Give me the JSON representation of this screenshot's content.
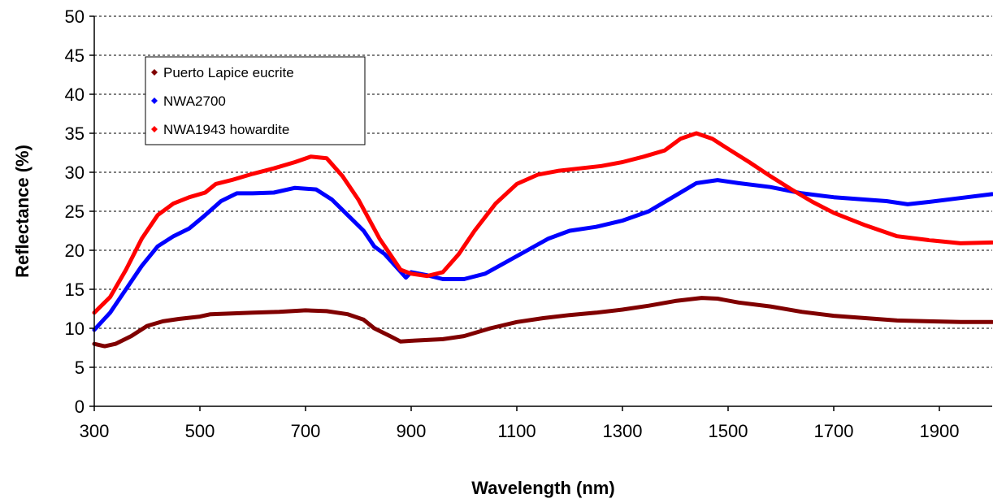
{
  "chart_data": {
    "type": "line",
    "xlabel": "Wavelength (nm)",
    "ylabel": "Reflectance (%)",
    "xlim": [
      300,
      2000
    ],
    "ylim": [
      0,
      50
    ],
    "x_ticks": [
      300,
      500,
      700,
      900,
      1100,
      1300,
      1500,
      1700,
      1900
    ],
    "y_ticks": [
      0,
      5,
      10,
      15,
      20,
      25,
      30,
      35,
      40,
      45,
      50
    ],
    "grid": "horizontal dashed",
    "legend_position": "top-left",
    "series": [
      {
        "name": "Puerto Lapice eucrite",
        "color": "#800000",
        "points": [
          [
            300,
            8.0
          ],
          [
            320,
            7.7
          ],
          [
            340,
            8.0
          ],
          [
            370,
            9.0
          ],
          [
            400,
            10.3
          ],
          [
            430,
            10.9
          ],
          [
            460,
            11.2
          ],
          [
            500,
            11.5
          ],
          [
            520,
            11.8
          ],
          [
            560,
            11.9
          ],
          [
            600,
            12.0
          ],
          [
            650,
            12.1
          ],
          [
            700,
            12.3
          ],
          [
            740,
            12.2
          ],
          [
            780,
            11.8
          ],
          [
            810,
            11.1
          ],
          [
            830,
            10.0
          ],
          [
            860,
            9.0
          ],
          [
            880,
            8.3
          ],
          [
            900,
            8.4
          ],
          [
            930,
            8.5
          ],
          [
            960,
            8.6
          ],
          [
            1000,
            9.0
          ],
          [
            1050,
            10.0
          ],
          [
            1100,
            10.8
          ],
          [
            1150,
            11.3
          ],
          [
            1200,
            11.7
          ],
          [
            1250,
            12.0
          ],
          [
            1300,
            12.4
          ],
          [
            1350,
            12.9
          ],
          [
            1400,
            13.5
          ],
          [
            1450,
            13.9
          ],
          [
            1480,
            13.8
          ],
          [
            1520,
            13.3
          ],
          [
            1580,
            12.8
          ],
          [
            1640,
            12.1
          ],
          [
            1700,
            11.6
          ],
          [
            1760,
            11.3
          ],
          [
            1820,
            11.0
          ],
          [
            1880,
            10.9
          ],
          [
            1940,
            10.8
          ],
          [
            2000,
            10.8
          ]
        ]
      },
      {
        "name": "NWA2700",
        "color": "#0000ff",
        "points": [
          [
            300,
            9.8
          ],
          [
            330,
            12.0
          ],
          [
            360,
            15.0
          ],
          [
            390,
            18.0
          ],
          [
            420,
            20.5
          ],
          [
            450,
            21.8
          ],
          [
            480,
            22.8
          ],
          [
            510,
            24.5
          ],
          [
            540,
            26.3
          ],
          [
            570,
            27.3
          ],
          [
            600,
            27.3
          ],
          [
            640,
            27.4
          ],
          [
            680,
            28.0
          ],
          [
            720,
            27.8
          ],
          [
            750,
            26.5
          ],
          [
            780,
            24.5
          ],
          [
            810,
            22.5
          ],
          [
            830,
            20.5
          ],
          [
            850,
            19.5
          ],
          [
            870,
            18.0
          ],
          [
            890,
            16.5
          ],
          [
            900,
            17.2
          ],
          [
            930,
            16.8
          ],
          [
            960,
            16.3
          ],
          [
            1000,
            16.3
          ],
          [
            1040,
            17.0
          ],
          [
            1080,
            18.5
          ],
          [
            1120,
            20.0
          ],
          [
            1160,
            21.5
          ],
          [
            1200,
            22.5
          ],
          [
            1250,
            23.0
          ],
          [
            1300,
            23.8
          ],
          [
            1350,
            25.0
          ],
          [
            1400,
            27.0
          ],
          [
            1440,
            28.6
          ],
          [
            1480,
            29.0
          ],
          [
            1520,
            28.6
          ],
          [
            1580,
            28.1
          ],
          [
            1640,
            27.3
          ],
          [
            1700,
            26.8
          ],
          [
            1760,
            26.5
          ],
          [
            1800,
            26.3
          ],
          [
            1840,
            25.9
          ],
          [
            1880,
            26.2
          ],
          [
            1940,
            26.7
          ],
          [
            2000,
            27.2
          ]
        ]
      },
      {
        "name": "NWA1943 howardite",
        "color": "#ff0000",
        "points": [
          [
            300,
            12.0
          ],
          [
            330,
            14.0
          ],
          [
            360,
            17.5
          ],
          [
            390,
            21.5
          ],
          [
            420,
            24.5
          ],
          [
            450,
            26.0
          ],
          [
            480,
            26.8
          ],
          [
            510,
            27.4
          ],
          [
            530,
            28.5
          ],
          [
            560,
            29.0
          ],
          [
            600,
            29.8
          ],
          [
            640,
            30.5
          ],
          [
            680,
            31.3
          ],
          [
            710,
            32.0
          ],
          [
            740,
            31.8
          ],
          [
            770,
            29.5
          ],
          [
            800,
            26.5
          ],
          [
            820,
            24.0
          ],
          [
            840,
            21.5
          ],
          [
            860,
            19.5
          ],
          [
            880,
            17.5
          ],
          [
            900,
            17.0
          ],
          [
            930,
            16.7
          ],
          [
            960,
            17.2
          ],
          [
            990,
            19.5
          ],
          [
            1020,
            22.5
          ],
          [
            1060,
            26.0
          ],
          [
            1100,
            28.5
          ],
          [
            1140,
            29.7
          ],
          [
            1180,
            30.2
          ],
          [
            1220,
            30.5
          ],
          [
            1260,
            30.8
          ],
          [
            1300,
            31.3
          ],
          [
            1340,
            32.0
          ],
          [
            1380,
            32.8
          ],
          [
            1410,
            34.3
          ],
          [
            1440,
            35.0
          ],
          [
            1470,
            34.3
          ],
          [
            1500,
            33.0
          ],
          [
            1540,
            31.3
          ],
          [
            1580,
            29.5
          ],
          [
            1620,
            27.8
          ],
          [
            1660,
            26.2
          ],
          [
            1700,
            24.8
          ],
          [
            1760,
            23.2
          ],
          [
            1820,
            21.8
          ],
          [
            1880,
            21.3
          ],
          [
            1940,
            20.9
          ],
          [
            2000,
            21.0
          ]
        ]
      }
    ]
  }
}
